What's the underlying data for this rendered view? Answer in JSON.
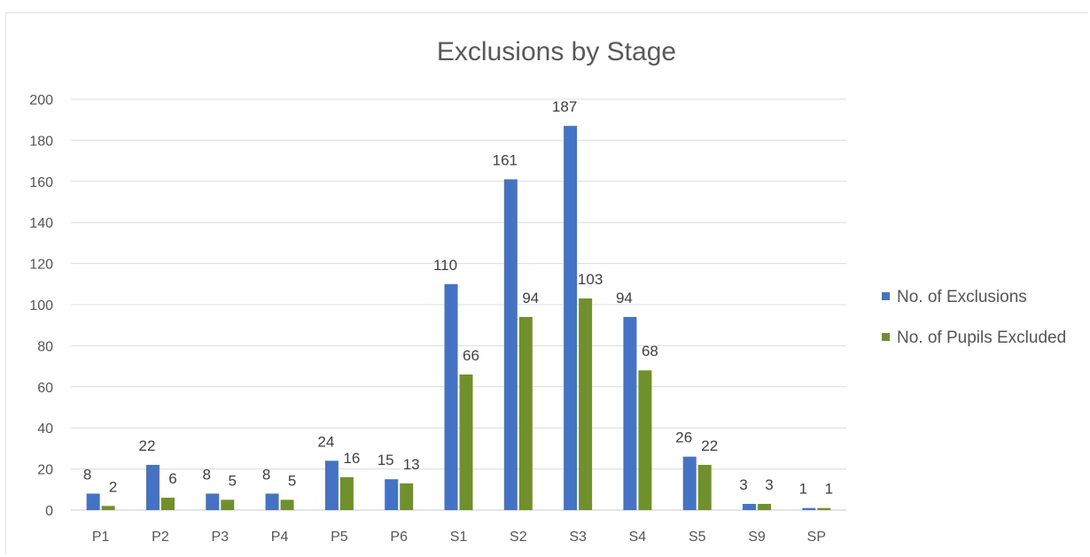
{
  "chart_data": {
    "type": "bar",
    "title": "Exclusions by Stage",
    "categories": [
      "P1",
      "P2",
      "P3",
      "P4",
      "P5",
      "P6",
      "S1",
      "S2",
      "S3",
      "S4",
      "S5",
      "S9",
      "SP"
    ],
    "series": [
      {
        "name": "No. of Exclusions",
        "color": "#4472C4",
        "values": [
          8,
          22,
          8,
          8,
          24,
          15,
          110,
          161,
          187,
          94,
          26,
          3,
          1
        ]
      },
      {
        "name": "No. of Pupils Excluded",
        "color": "#70902C",
        "values": [
          2,
          6,
          5,
          5,
          16,
          13,
          66,
          94,
          103,
          68,
          22,
          3,
          1
        ]
      }
    ],
    "ylim": [
      0,
      200
    ],
    "yticks": [
      0,
      20,
      40,
      60,
      80,
      100,
      120,
      140,
      160,
      180,
      200
    ],
    "xlabel": "",
    "ylabel": "",
    "grid": true,
    "legend_position": "right"
  }
}
